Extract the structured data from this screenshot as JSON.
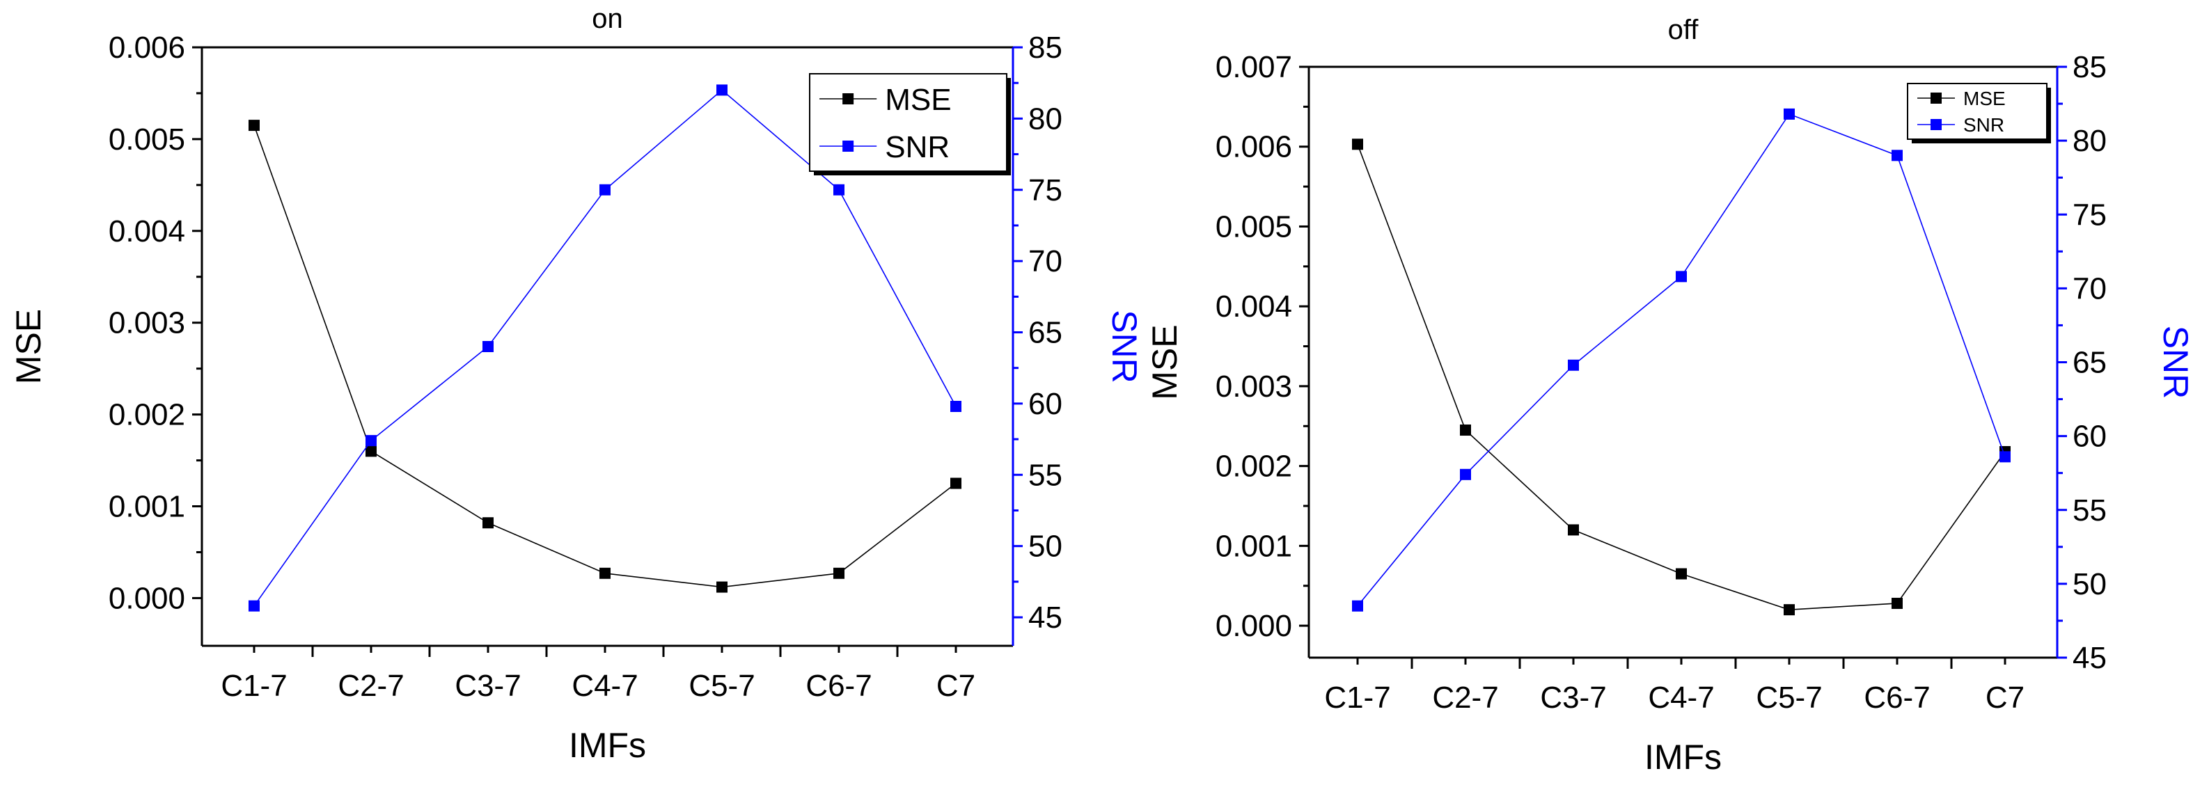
{
  "chart_data": [
    {
      "type": "line",
      "title": "on",
      "xlabel": "IMFs",
      "ylabel_left": "MSE",
      "ylabel_right": "SNR",
      "categories": [
        "C1-7",
        "C2-7",
        "C3-7",
        "C4-7",
        "C5-7",
        "C6-7",
        "C7"
      ],
      "ylim_left": [
        -0.00052,
        0.006
      ],
      "ylim_right": [
        43,
        85
      ],
      "yticks_left": [
        "0.000",
        "0.001",
        "0.002",
        "0.003",
        "0.004",
        "0.005",
        "0.006"
      ],
      "yticks_right": [
        "45",
        "50",
        "55",
        "60",
        "65",
        "70",
        "75",
        "80",
        "85"
      ],
      "legend_position": "top-right",
      "series": [
        {
          "name": "MSE",
          "axis": "left",
          "color": "#000000",
          "values": [
            0.00515,
            0.0016,
            0.00082,
            0.00027,
            0.00012,
            0.00027,
            0.00125
          ]
        },
        {
          "name": "SNR",
          "axis": "right",
          "color": "#0000ff",
          "values": [
            45.8,
            57.4,
            64.0,
            75.0,
            82.0,
            75.0,
            59.8
          ]
        }
      ]
    },
    {
      "type": "line",
      "title": "off",
      "xlabel": "IMFs",
      "ylabel_left": "MSE",
      "ylabel_right": "SNR",
      "categories": [
        "C1-7",
        "C2-7",
        "C3-7",
        "C4-7",
        "C5-7",
        "C6-7",
        "C7"
      ],
      "ylim_left": [
        -0.0004,
        0.007
      ],
      "ylim_right": [
        45,
        85
      ],
      "yticks_left": [
        "0.000",
        "0.001",
        "0.002",
        "0.003",
        "0.004",
        "0.005",
        "0.006",
        "0.007"
      ],
      "yticks_right": [
        "45",
        "50",
        "55",
        "60",
        "65",
        "70",
        "75",
        "80",
        "85"
      ],
      "legend_position": "top-right",
      "series": [
        {
          "name": "MSE",
          "axis": "left",
          "color": "#000000",
          "values": [
            0.00603,
            0.00245,
            0.0012,
            0.00065,
            0.0002,
            0.00028,
            0.00218
          ]
        },
        {
          "name": "SNR",
          "axis": "right",
          "color": "#0000ff",
          "values": [
            48.5,
            57.4,
            64.8,
            70.8,
            81.8,
            79.0,
            58.6
          ]
        }
      ]
    }
  ]
}
